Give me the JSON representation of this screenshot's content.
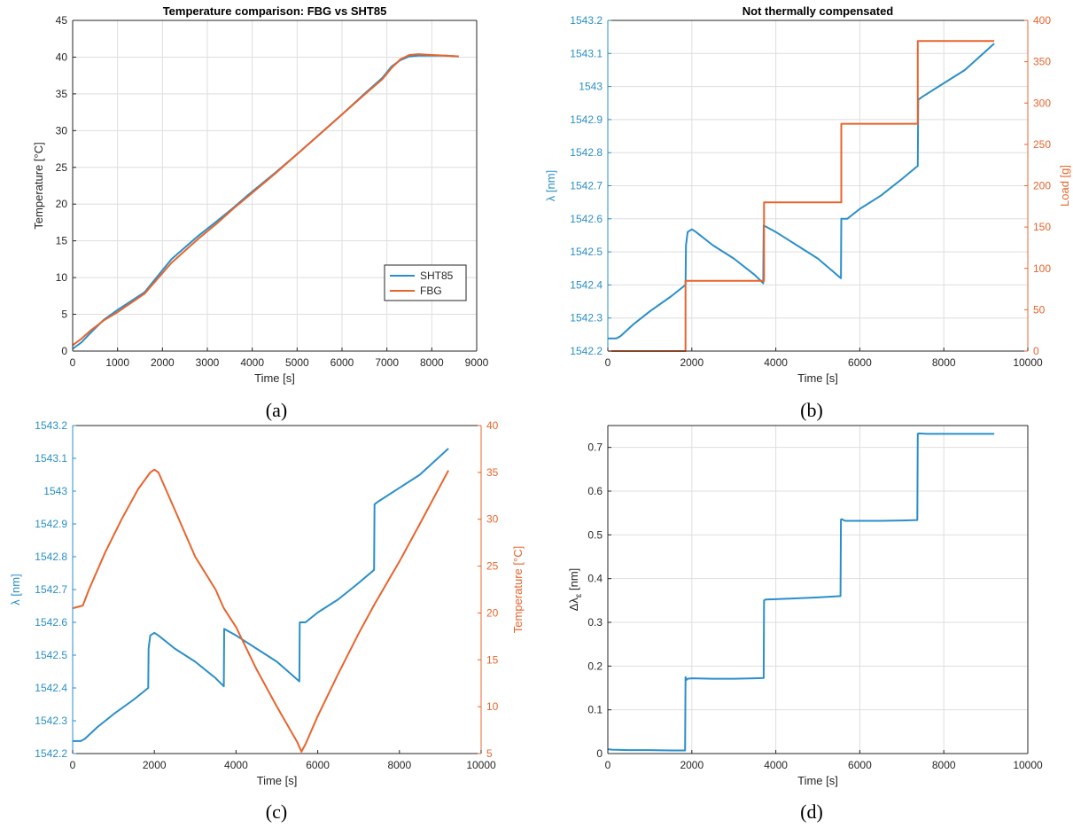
{
  "colors": {
    "blue": "#2a8fc9",
    "orange": "#e8642c",
    "axis": "#262626",
    "grid": "#dedede"
  },
  "chart_data": [
    {
      "id": "a",
      "caption": "(a)",
      "type": "line",
      "title": "Temperature comparison: FBG vs SHT85",
      "xlabel": "Time [s]",
      "ylabel": "Temperature [°C]",
      "xlim": [
        0,
        9000
      ],
      "ylim": [
        0,
        45
      ],
      "xticks": [
        0,
        1000,
        2000,
        3000,
        4000,
        5000,
        6000,
        7000,
        8000,
        9000
      ],
      "yticks": [
        0,
        5,
        10,
        15,
        20,
        25,
        30,
        35,
        40,
        45
      ],
      "grid": true,
      "legend_position": "lower-right",
      "series": [
        {
          "name": "SHT85",
          "color": "#2a8fc9",
          "axis": "left",
          "x": [
            0,
            200,
            400,
            700,
            1000,
            1600,
            2200,
            2800,
            3200,
            3600,
            3900,
            4500,
            5000,
            5500,
            6000,
            6500,
            6900,
            7100,
            7300,
            7500,
            7700,
            8000,
            8300,
            8600
          ],
          "y": [
            0.3,
            1.2,
            2.5,
            4.3,
            5.6,
            8.0,
            12.5,
            15.7,
            17.6,
            19.6,
            21.2,
            24.2,
            26.8,
            29.5,
            32.2,
            35.0,
            37.2,
            38.7,
            39.6,
            40.1,
            40.2,
            40.2,
            40.2,
            40.1
          ]
        },
        {
          "name": "FBG",
          "color": "#e8642c",
          "axis": "left",
          "x": [
            0,
            200,
            400,
            700,
            1000,
            1600,
            2200,
            2800,
            3200,
            3600,
            3900,
            4500,
            5000,
            5500,
            6000,
            6500,
            6900,
            7100,
            7300,
            7500,
            7700,
            8000,
            8300,
            8600
          ],
          "y": [
            0.8,
            1.7,
            2.8,
            4.2,
            5.3,
            7.8,
            12.0,
            15.3,
            17.3,
            19.5,
            21.0,
            24.1,
            26.8,
            29.5,
            32.2,
            34.9,
            37.0,
            38.5,
            39.7,
            40.3,
            40.4,
            40.3,
            40.2,
            40.1
          ]
        }
      ]
    },
    {
      "id": "b",
      "caption": "(b)",
      "type": "line",
      "title": "Not thermally compensated",
      "xlabel": "Time [s]",
      "ylabel": "λ [nm]",
      "y2label": "Load [g]",
      "xlim": [
        0,
        10000
      ],
      "ylim": [
        1542.2,
        1543.2
      ],
      "y2lim": [
        0,
        400
      ],
      "xticks": [
        0,
        2000,
        4000,
        6000,
        8000,
        10000
      ],
      "yticks": [
        1542.2,
        1542.3,
        1542.4,
        1542.5,
        1542.6,
        1542.7,
        1542.8,
        1542.9,
        1543,
        1543.1,
        1543.2
      ],
      "y2ticks": [
        0,
        50,
        100,
        150,
        200,
        250,
        300,
        350,
        400
      ],
      "grid": true,
      "series": [
        {
          "color": "#2a8fc9",
          "axis": "left",
          "x": [
            0,
            200,
            300,
            600,
            1000,
            1500,
            1850,
            1860,
            1900,
            2000,
            2100,
            2500,
            3000,
            3500,
            3700,
            3710,
            4000,
            4500,
            5000,
            5550,
            5560,
            5700,
            6000,
            6500,
            7000,
            7380,
            7390,
            7500,
            8000,
            8500,
            9200
          ],
          "y": [
            1542.238,
            1542.238,
            1542.245,
            1542.28,
            1542.32,
            1542.365,
            1542.4,
            1542.52,
            1542.56,
            1542.568,
            1542.56,
            1542.52,
            1542.48,
            1542.43,
            1542.405,
            1542.58,
            1542.56,
            1542.52,
            1542.48,
            1542.42,
            1542.6,
            1542.6,
            1542.63,
            1542.67,
            1542.72,
            1542.76,
            1542.96,
            1542.97,
            1543.01,
            1543.05,
            1543.13
          ]
        },
        {
          "color": "#e8642c",
          "axis": "right",
          "x": [
            0,
            1850,
            1850,
            3720,
            3720,
            5560,
            5560,
            7380,
            7380,
            9200
          ],
          "y": [
            0,
            0,
            85,
            85,
            180,
            180,
            275,
            275,
            375,
            375
          ]
        }
      ]
    },
    {
      "id": "c",
      "caption": "(c)",
      "type": "line",
      "title": "",
      "xlabel": "Time [s]",
      "ylabel": "λ [nm]",
      "y2label": "Temperature [°C]",
      "xlim": [
        0,
        10000
      ],
      "ylim": [
        1542.2,
        1543.2
      ],
      "y2lim": [
        5,
        40
      ],
      "xticks": [
        0,
        2000,
        4000,
        6000,
        8000,
        10000
      ],
      "yticks": [
        1542.2,
        1542.3,
        1542.4,
        1542.5,
        1542.6,
        1542.7,
        1542.8,
        1542.9,
        1543,
        1543.1,
        1543.2
      ],
      "y2ticks": [
        5,
        10,
        15,
        20,
        25,
        30,
        35,
        40
      ],
      "grid": false,
      "series": [
        {
          "color": "#2a8fc9",
          "axis": "left",
          "x": [
            0,
            200,
            300,
            600,
            1000,
            1500,
            1850,
            1860,
            1900,
            2000,
            2100,
            2500,
            3000,
            3500,
            3700,
            3710,
            4000,
            4500,
            5000,
            5550,
            5560,
            5700,
            6000,
            6500,
            7000,
            7380,
            7390,
            7500,
            8000,
            8500,
            9200
          ],
          "y": [
            1542.238,
            1542.238,
            1542.245,
            1542.28,
            1542.32,
            1542.365,
            1542.4,
            1542.52,
            1542.56,
            1542.568,
            1542.56,
            1542.52,
            1542.48,
            1542.43,
            1542.405,
            1542.58,
            1542.56,
            1542.52,
            1542.48,
            1542.42,
            1542.6,
            1542.6,
            1542.63,
            1542.67,
            1542.72,
            1542.76,
            1542.96,
            1542.97,
            1543.01,
            1543.05,
            1543.13
          ]
        },
        {
          "color": "#e8642c",
          "axis": "right",
          "x": [
            0,
            250,
            400,
            800,
            1200,
            1600,
            1900,
            2000,
            2100,
            2500,
            3000,
            3500,
            3700,
            4000,
            4500,
            5000,
            5500,
            5600,
            5700,
            6000,
            6500,
            7000,
            7400,
            8000,
            8500,
            9200
          ],
          "y": [
            20.5,
            20.8,
            22.5,
            26.5,
            30.0,
            33.2,
            35.0,
            35.3,
            35.0,
            31.0,
            26.0,
            22.5,
            20.5,
            18.5,
            14.0,
            10.0,
            6.2,
            5.2,
            6.0,
            9.0,
            13.5,
            17.8,
            21.0,
            25.5,
            29.5,
            35.2
          ]
        }
      ]
    },
    {
      "id": "d",
      "caption": "(d)",
      "type": "line",
      "title": "",
      "xlabel": "Time [s]",
      "ylabel": "Δλ_ε [nm]",
      "xlim": [
        0,
        10000
      ],
      "ylim": [
        0,
        0.75
      ],
      "xticks": [
        0,
        2000,
        4000,
        6000,
        8000,
        10000
      ],
      "yticks": [
        0,
        0.1,
        0.2,
        0.3,
        0.4,
        0.5,
        0.6,
        0.7
      ],
      "grid": true,
      "series": [
        {
          "color": "#2a8fc9",
          "axis": "left",
          "x": [
            0,
            100,
            500,
            1000,
            1500,
            1840,
            1850,
            1870,
            1900,
            2000,
            2500,
            3000,
            3500,
            3710,
            3720,
            3750,
            4000,
            4500,
            5000,
            5540,
            5550,
            5570,
            5650,
            6000,
            6500,
            7000,
            7370,
            7380,
            7400,
            7600,
            8000,
            8500,
            9200
          ],
          "y": [
            0.01,
            0.009,
            0.008,
            0.008,
            0.007,
            0.007,
            0.175,
            0.168,
            0.171,
            0.172,
            0.171,
            0.171,
            0.172,
            0.173,
            0.35,
            0.352,
            0.353,
            0.355,
            0.357,
            0.36,
            0.535,
            0.536,
            0.532,
            0.532,
            0.532,
            0.533,
            0.534,
            0.731,
            0.732,
            0.731,
            0.731,
            0.731,
            0.731
          ]
        }
      ]
    }
  ]
}
